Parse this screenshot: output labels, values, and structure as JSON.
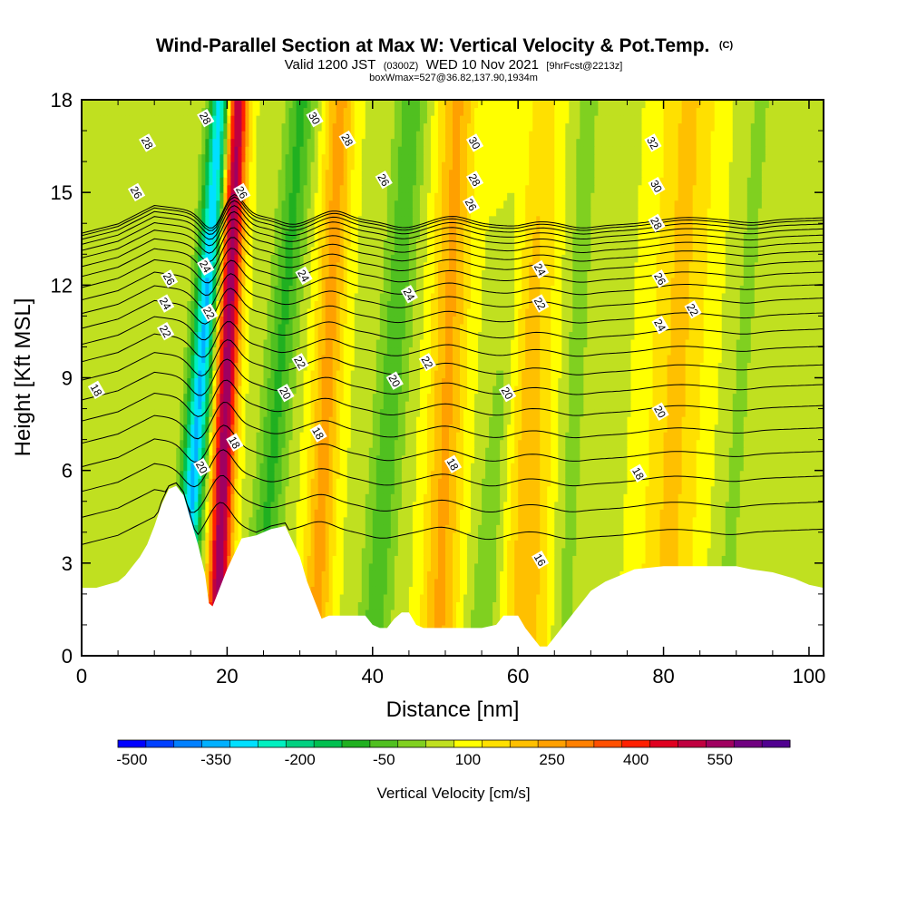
{
  "chart_data": {
    "type": "heatmap",
    "title": "Wind-Parallel Section at Max W: Vertical Velocity & Pot.Temp.",
    "title_mark": "(C)",
    "subtitle_prefix": "Valid 1200 JST",
    "subtitle_small_1": "(0300Z)",
    "subtitle_main": "WED 10 Nov 2021",
    "subtitle_small_2": "[9hrFcst@2213z]",
    "subtitle2": "boxWmax=527@36.82,137.90,1934m",
    "xlabel": "Distance [nm]",
    "ylabel": "Height [Kft MSL]",
    "xlim": [
      0,
      102
    ],
    "ylim": [
      0,
      18
    ],
    "xticks": [
      "0",
      "20",
      "40",
      "60",
      "80",
      "100"
    ],
    "yticks": [
      "0",
      "3",
      "6",
      "9",
      "12",
      "15",
      "18"
    ],
    "colorbar": {
      "label": "Vertical Velocity [cm/s]",
      "levels": [
        -500,
        -450,
        -400,
        -350,
        -300,
        -250,
        -200,
        -150,
        -100,
        -50,
        0,
        50,
        100,
        150,
        200,
        250,
        300,
        350,
        400,
        450,
        500,
        550,
        600
      ],
      "colors": [
        "#0000ff",
        "#0040ff",
        "#0080ff",
        "#00b0ff",
        "#00e0ff",
        "#00f0c0",
        "#00d080",
        "#00c050",
        "#20b020",
        "#50c020",
        "#80d020",
        "#c0e020",
        "#ffff00",
        "#ffe000",
        "#ffc000",
        "#ffa000",
        "#ff8000",
        "#ff5000",
        "#ff2000",
        "#e00020",
        "#c00040",
        "#a00060",
        "#700080",
        "#500090"
      ],
      "tick_labels": [
        "-500",
        "-350",
        "-200",
        "-50",
        "100",
        "250",
        "400",
        "550"
      ]
    },
    "terrain_kft": [
      [
        0,
        2.2
      ],
      [
        2,
        2.2
      ],
      [
        5,
        2.4
      ],
      [
        6,
        2.6
      ],
      [
        7,
        2.9
      ],
      [
        8,
        3.2
      ],
      [
        9,
        3.6
      ],
      [
        10,
        4.2
      ],
      [
        11,
        4.9
      ],
      [
        12,
        5.4
      ],
      [
        13,
        5.5
      ],
      [
        14,
        5.2
      ],
      [
        15,
        4.4
      ],
      [
        16,
        3.6
      ],
      [
        17,
        2.6
      ],
      [
        17.5,
        1.7
      ],
      [
        18,
        1.6
      ],
      [
        19,
        2.2
      ],
      [
        20,
        2.8
      ],
      [
        21,
        3.3
      ],
      [
        22,
        3.8
      ],
      [
        24,
        3.9
      ],
      [
        26,
        4.1
      ],
      [
        28,
        4.2
      ],
      [
        29,
        3.7
      ],
      [
        30,
        3.2
      ],
      [
        31,
        2.4
      ],
      [
        32,
        1.8
      ],
      [
        33,
        1.2
      ],
      [
        34,
        1.3
      ],
      [
        37,
        1.3
      ],
      [
        39,
        1.3
      ],
      [
        40,
        1.0
      ],
      [
        41,
        0.9
      ],
      [
        42,
        0.9
      ],
      [
        43,
        1.2
      ],
      [
        44,
        1.4
      ],
      [
        45,
        1.4
      ],
      [
        46,
        1.0
      ],
      [
        47,
        0.9
      ],
      [
        52,
        0.9
      ],
      [
        55,
        0.9
      ],
      [
        57,
        1.0
      ],
      [
        58,
        1.3
      ],
      [
        60,
        1.3
      ],
      [
        61,
        0.9
      ],
      [
        62,
        0.6
      ],
      [
        63,
        0.3
      ],
      [
        64,
        0.3
      ],
      [
        65,
        0.6
      ],
      [
        66,
        0.9
      ],
      [
        67,
        1.2
      ],
      [
        68,
        1.5
      ],
      [
        69,
        1.8
      ],
      [
        70,
        2.1
      ],
      [
        72,
        2.4
      ],
      [
        74,
        2.6
      ],
      [
        76,
        2.8
      ],
      [
        80,
        2.9
      ],
      [
        90,
        2.9
      ],
      [
        92,
        2.8
      ],
      [
        95,
        2.7
      ],
      [
        98,
        2.5
      ],
      [
        100,
        2.3
      ],
      [
        102,
        2.2
      ]
    ],
    "w_bands": [
      {
        "x_base": 13.5,
        "slant": 0.32,
        "width": 1.6,
        "w": -400
      },
      {
        "x_base": 18.5,
        "slant": 0.16,
        "width": 1.5,
        "w": 500
      },
      {
        "x_base": 24.0,
        "slant": 0.35,
        "width": 2.0,
        "w": -150
      },
      {
        "x_base": 32.0,
        "slant": 0.2,
        "width": 2.0,
        "w": 180
      },
      {
        "x_base": 40.0,
        "slant": 0.3,
        "width": 2.2,
        "w": -120
      },
      {
        "x_base": 49.0,
        "slant": 0.15,
        "width": 2.5,
        "w": 170
      },
      {
        "x_base": 55.0,
        "slant": 0.35,
        "width": 2.2,
        "w": -90
      },
      {
        "x_base": 61.0,
        "slant": 0.05,
        "width": 3.5,
        "w": 140
      },
      {
        "x_base": 66.0,
        "slant": 0.2,
        "width": 2.0,
        "w": -60
      },
      {
        "x_base": 80.0,
        "slant": 0.2,
        "width": 4.0,
        "w": 120
      },
      {
        "x_base": 88.0,
        "slant": 0.3,
        "width": 2.0,
        "w": -50
      }
    ],
    "theta_contours": {
      "levels": [
        18,
        19,
        20,
        21,
        22,
        23,
        24,
        25,
        26,
        27,
        28,
        29,
        30,
        31,
        32
      ],
      "labels": [
        {
          "text": "18",
          "x": 2.0,
          "y": 8.6
        },
        {
          "text": "28",
          "x": 9.0,
          "y": 16.6
        },
        {
          "text": "26",
          "x": 7.5,
          "y": 15.0
        },
        {
          "text": "26",
          "x": 12.0,
          "y": 12.2
        },
        {
          "text": "24",
          "x": 11.5,
          "y": 11.4
        },
        {
          "text": "22",
          "x": 11.5,
          "y": 10.5
        },
        {
          "text": "28",
          "x": 17.0,
          "y": 17.4
        },
        {
          "text": "24",
          "x": 17.0,
          "y": 12.6
        },
        {
          "text": "22",
          "x": 17.5,
          "y": 11.1
        },
        {
          "text": "20",
          "x": 16.5,
          "y": 6.1
        },
        {
          "text": "18",
          "x": 21.0,
          "y": 6.9
        },
        {
          "text": "26",
          "x": 22.0,
          "y": 15.0
        },
        {
          "text": "30",
          "x": 32.0,
          "y": 17.4
        },
        {
          "text": "28",
          "x": 36.5,
          "y": 16.7
        },
        {
          "text": "24",
          "x": 30.5,
          "y": 12.3
        },
        {
          "text": "22",
          "x": 30.0,
          "y": 9.5
        },
        {
          "text": "20",
          "x": 28.0,
          "y": 8.5
        },
        {
          "text": "18",
          "x": 32.5,
          "y": 7.2
        },
        {
          "text": "26",
          "x": 41.5,
          "y": 15.4
        },
        {
          "text": "24",
          "x": 45.0,
          "y": 11.7
        },
        {
          "text": "20",
          "x": 43.0,
          "y": 8.9
        },
        {
          "text": "22",
          "x": 47.5,
          "y": 9.5
        },
        {
          "text": "18",
          "x": 51.0,
          "y": 6.2
        },
        {
          "text": "30",
          "x": 54.0,
          "y": 16.6
        },
        {
          "text": "28",
          "x": 54.0,
          "y": 15.4
        },
        {
          "text": "26",
          "x": 53.5,
          "y": 14.6
        },
        {
          "text": "24",
          "x": 63.0,
          "y": 12.5
        },
        {
          "text": "22",
          "x": 63.0,
          "y": 11.4
        },
        {
          "text": "20",
          "x": 58.5,
          "y": 8.5
        },
        {
          "text": "16",
          "x": 63.0,
          "y": 3.1
        },
        {
          "text": "32",
          "x": 78.5,
          "y": 16.6
        },
        {
          "text": "30",
          "x": 79.0,
          "y": 15.2
        },
        {
          "text": "28",
          "x": 79.0,
          "y": 14.0
        },
        {
          "text": "26",
          "x": 79.5,
          "y": 12.2
        },
        {
          "text": "24",
          "x": 79.5,
          "y": 10.7
        },
        {
          "text": "22",
          "x": 84.0,
          "y": 11.2
        },
        {
          "text": "20",
          "x": 79.5,
          "y": 7.9
        },
        {
          "text": "18",
          "x": 76.5,
          "y": 5.9
        }
      ]
    }
  }
}
